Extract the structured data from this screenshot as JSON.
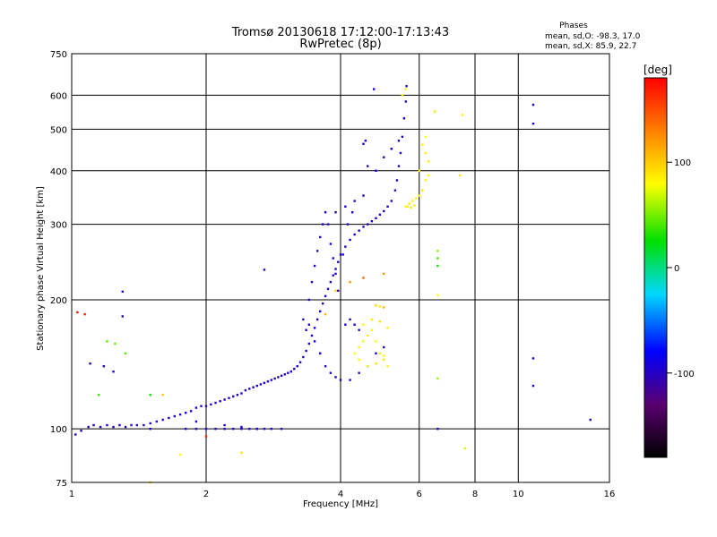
{
  "chart_data": {
    "type": "scatter",
    "title": "Tromsø 20130618 17:12:00-17:13:43",
    "subtitle": "RwPretec (8p)",
    "xlabel": "Frequency [MHz]",
    "ylabel": "Stationary phase Virtual Height [km]",
    "x_scale": "log",
    "y_scale": "log",
    "xlim": [
      1,
      16
    ],
    "ylim": [
      75,
      750
    ],
    "grid": true,
    "x_ticks": [
      1,
      2,
      4,
      6,
      8,
      10,
      16
    ],
    "y_ticks": [
      75,
      100,
      200,
      300,
      400,
      500,
      600,
      750
    ],
    "phases": {
      "heading": "Phases",
      "line_o": "mean, sd,O:  -98.3, 17.0",
      "line_x": "mean, sd,X:  85.9, 22.7"
    },
    "colorbar": {
      "label": "[deg]",
      "range": [
        -180,
        180
      ],
      "ticks": [
        100,
        0,
        -100
      ]
    },
    "series": [
      {
        "mode": "O",
        "points": [
          [
            1.02,
            97,
            -95
          ],
          [
            1.05,
            99,
            -95
          ],
          [
            1.09,
            101,
            -100
          ],
          [
            1.12,
            102,
            -95
          ],
          [
            1.16,
            101,
            -100
          ],
          [
            1.2,
            102,
            -95
          ],
          [
            1.24,
            101,
            -100
          ],
          [
            1.28,
            102,
            -95
          ],
          [
            1.32,
            101,
            -100
          ],
          [
            1.36,
            102,
            -100
          ],
          [
            1.4,
            102,
            -95
          ],
          [
            1.45,
            102,
            -100
          ],
          [
            1.5,
            103,
            -95
          ],
          [
            1.55,
            104,
            -100
          ],
          [
            1.6,
            105,
            -95
          ],
          [
            1.65,
            106,
            -100
          ],
          [
            1.7,
            107,
            -95
          ],
          [
            1.75,
            108,
            -100
          ],
          [
            1.8,
            109,
            -95
          ],
          [
            1.85,
            110,
            -100
          ],
          [
            1.9,
            112,
            -95
          ],
          [
            1.95,
            113,
            -100
          ],
          [
            2.0,
            113,
            -95
          ],
          [
            2.05,
            114,
            -100
          ],
          [
            2.1,
            115,
            -95
          ],
          [
            2.15,
            116,
            -100
          ],
          [
            2.2,
            117,
            -95
          ],
          [
            2.25,
            118,
            -100
          ],
          [
            2.3,
            119,
            -95
          ],
          [
            2.35,
            120,
            -100
          ],
          [
            2.4,
            121,
            -95
          ],
          [
            2.45,
            123,
            -100
          ],
          [
            2.5,
            124,
            -95
          ],
          [
            2.55,
            125,
            -100
          ],
          [
            2.6,
            126,
            -95
          ],
          [
            2.65,
            127,
            -100
          ],
          [
            2.7,
            128,
            -95
          ],
          [
            2.75,
            129,
            -100
          ],
          [
            2.8,
            130,
            -95
          ],
          [
            2.85,
            131,
            -100
          ],
          [
            2.9,
            132,
            -95
          ],
          [
            2.95,
            133,
            -100
          ],
          [
            3.0,
            134,
            -95
          ],
          [
            3.05,
            135,
            -100
          ],
          [
            3.1,
            136,
            -95
          ],
          [
            3.15,
            138,
            -100
          ],
          [
            3.2,
            140,
            -95
          ],
          [
            3.25,
            143,
            -100
          ],
          [
            3.3,
            147,
            -95
          ],
          [
            3.35,
            152,
            -100
          ],
          [
            3.4,
            158,
            -95
          ],
          [
            3.45,
            165,
            -100
          ],
          [
            3.5,
            172,
            -95
          ],
          [
            3.55,
            180,
            -100
          ],
          [
            3.6,
            188,
            -95
          ],
          [
            3.65,
            196,
            -100
          ],
          [
            3.7,
            204,
            -95
          ],
          [
            3.75,
            212,
            -100
          ],
          [
            3.8,
            220,
            -95
          ],
          [
            3.85,
            228,
            -100
          ],
          [
            3.9,
            236,
            -95
          ],
          [
            3.95,
            245,
            -100
          ],
          [
            4.0,
            255,
            -95
          ],
          [
            4.1,
            266,
            -100
          ],
          [
            4.2,
            276,
            -95
          ],
          [
            4.3,
            284,
            -100
          ],
          [
            4.4,
            290,
            -95
          ],
          [
            4.5,
            296,
            -100
          ],
          [
            4.6,
            300,
            -95
          ],
          [
            4.7,
            305,
            -100
          ],
          [
            4.8,
            310,
            -95
          ],
          [
            4.9,
            316,
            -100
          ],
          [
            5.0,
            322,
            -95
          ],
          [
            5.1,
            330,
            -100
          ],
          [
            5.2,
            340,
            -95
          ],
          [
            5.3,
            360,
            -100
          ],
          [
            5.35,
            380,
            -95
          ],
          [
            5.4,
            410,
            -100
          ],
          [
            5.45,
            440,
            -95
          ],
          [
            5.5,
            480,
            -100
          ],
          [
            5.55,
            530,
            -95
          ],
          [
            5.6,
            580,
            -100
          ],
          [
            5.62,
            630,
            -95
          ],
          [
            1.8,
            100,
            -95
          ],
          [
            1.9,
            100,
            -100
          ],
          [
            2.0,
            100,
            -95
          ],
          [
            2.1,
            100,
            -100
          ],
          [
            2.2,
            100,
            -95
          ],
          [
            2.3,
            100,
            -100
          ],
          [
            2.4,
            100,
            -95
          ],
          [
            2.5,
            100,
            -100
          ],
          [
            2.6,
            100,
            -95
          ],
          [
            2.7,
            100,
            -100
          ],
          [
            2.8,
            100,
            -95
          ],
          [
            2.95,
            100,
            -100
          ],
          [
            3.4,
            200,
            -95
          ],
          [
            3.45,
            220,
            -100
          ],
          [
            3.5,
            240,
            -95
          ],
          [
            3.55,
            260,
            -100
          ],
          [
            3.6,
            280,
            -95
          ],
          [
            3.65,
            300,
            -100
          ],
          [
            3.7,
            320,
            -95
          ],
          [
            3.75,
            300,
            -100
          ],
          [
            3.8,
            270,
            -95
          ],
          [
            3.85,
            250,
            -100
          ],
          [
            3.9,
            230,
            -95
          ],
          [
            3.95,
            210,
            -100
          ],
          [
            3.3,
            180,
            -95
          ],
          [
            3.35,
            170,
            -100
          ],
          [
            3.4,
            175,
            -95
          ],
          [
            3.5,
            160,
            -100
          ],
          [
            3.6,
            150,
            -95
          ],
          [
            3.7,
            140,
            -100
          ],
          [
            3.8,
            135,
            -95
          ],
          [
            3.9,
            132,
            -100
          ],
          [
            4.0,
            130,
            -95
          ],
          [
            4.2,
            130,
            -100
          ],
          [
            4.4,
            135,
            -95
          ],
          [
            4.6,
            140,
            -100
          ],
          [
            4.8,
            150,
            -95
          ],
          [
            5.0,
            155,
            -100
          ],
          [
            4.1,
            175,
            -95
          ],
          [
            4.2,
            180,
            -100
          ],
          [
            4.3,
            175,
            -95
          ],
          [
            4.4,
            170,
            -100
          ],
          [
            4.5,
            462,
            -95
          ],
          [
            4.55,
            470,
            -100
          ],
          [
            4.05,
            255,
            -95
          ],
          [
            4.15,
            300,
            -100
          ],
          [
            4.25,
            320,
            -95
          ],
          [
            4.6,
            410,
            -100
          ],
          [
            4.8,
            400,
            -95
          ],
          [
            5.0,
            430,
            -100
          ],
          [
            5.2,
            450,
            -95
          ],
          [
            5.4,
            470,
            -100
          ],
          [
            4.5,
            350,
            -95
          ],
          [
            4.3,
            340,
            -100
          ],
          [
            4.1,
            330,
            -95
          ],
          [
            3.9,
            320,
            -100
          ],
          [
            1.3,
            209,
            -100
          ],
          [
            1.3,
            183,
            -95
          ],
          [
            1.1,
            142,
            -100
          ],
          [
            1.18,
            140,
            -95
          ],
          [
            1.24,
            136,
            -100
          ],
          [
            2.7,
            235,
            -100
          ],
          [
            4.75,
            620,
            -95
          ],
          [
            10.8,
            570,
            -100
          ],
          [
            10.8,
            515,
            -95
          ],
          [
            14.5,
            105,
            -100
          ],
          [
            10.8,
            146,
            -95
          ],
          [
            10.8,
            126,
            -100
          ],
          [
            6.6,
            100,
            -95
          ],
          [
            1.5,
            100,
            -100
          ],
          [
            1.9,
            104,
            -95
          ],
          [
            2.2,
            102,
            -100
          ],
          [
            2.4,
            101,
            -95
          ],
          [
            2.6,
            100,
            -100
          ]
        ]
      },
      {
        "mode": "X",
        "points": [
          [
            4.3,
            150,
            80
          ],
          [
            4.4,
            155,
            85
          ],
          [
            4.5,
            160,
            80
          ],
          [
            4.6,
            165,
            90
          ],
          [
            4.7,
            170,
            85
          ],
          [
            4.8,
            160,
            80
          ],
          [
            4.9,
            150,
            85
          ],
          [
            5.0,
            145,
            90
          ],
          [
            5.1,
            140,
            85
          ],
          [
            4.4,
            145,
            80
          ],
          [
            4.6,
            140,
            85
          ],
          [
            4.8,
            142,
            90
          ],
          [
            5.0,
            148,
            85
          ],
          [
            4.5,
            175,
            80
          ],
          [
            4.7,
            180,
            85
          ],
          [
            4.9,
            178,
            90
          ],
          [
            5.1,
            172,
            85
          ],
          [
            5.6,
            330,
            85
          ],
          [
            5.7,
            335,
            90
          ],
          [
            5.8,
            340,
            85
          ],
          [
            5.9,
            345,
            80
          ],
          [
            6.0,
            350,
            85
          ],
          [
            6.1,
            360,
            90
          ],
          [
            6.2,
            380,
            85
          ],
          [
            6.3,
            390,
            80
          ],
          [
            6.3,
            420,
            85
          ],
          [
            6.2,
            440,
            90
          ],
          [
            6.1,
            460,
            85
          ],
          [
            6.2,
            480,
            80
          ],
          [
            5.65,
            330,
            85
          ],
          [
            5.75,
            328,
            90
          ],
          [
            5.85,
            332,
            85
          ],
          [
            5.5,
            600,
            85
          ],
          [
            5.6,
            620,
            80
          ],
          [
            6.0,
            400,
            85
          ],
          [
            6.5,
            550,
            90
          ],
          [
            7.5,
            540,
            85
          ],
          [
            7.4,
            390,
            90
          ],
          [
            6.6,
            260,
            55
          ],
          [
            6.6,
            250,
            40
          ],
          [
            6.6,
            240,
            30
          ],
          [
            6.6,
            205,
            80
          ],
          [
            6.6,
            131,
            60
          ],
          [
            7.6,
            90,
            70
          ],
          [
            3.9,
            210,
            100
          ],
          [
            3.7,
            185,
            110
          ],
          [
            4.2,
            220,
            120
          ],
          [
            4.5,
            225,
            140
          ],
          [
            5.0,
            230,
            120
          ],
          [
            1.2,
            160,
            45
          ],
          [
            1.25,
            158,
            50
          ],
          [
            1.32,
            150,
            45
          ],
          [
            1.15,
            120,
            40
          ],
          [
            1.5,
            120,
            30
          ],
          [
            1.6,
            120,
            100
          ],
          [
            1.75,
            87,
            80
          ],
          [
            2.0,
            96,
            165
          ],
          [
            2.4,
            88,
            90
          ],
          [
            1.5,
            75,
            95
          ],
          [
            1.03,
            187,
            175
          ],
          [
            1.07,
            185,
            170
          ],
          [
            4.8,
            194,
            100
          ],
          [
            5.0,
            192,
            110
          ],
          [
            4.9,
            193,
            90
          ]
        ]
      }
    ]
  }
}
